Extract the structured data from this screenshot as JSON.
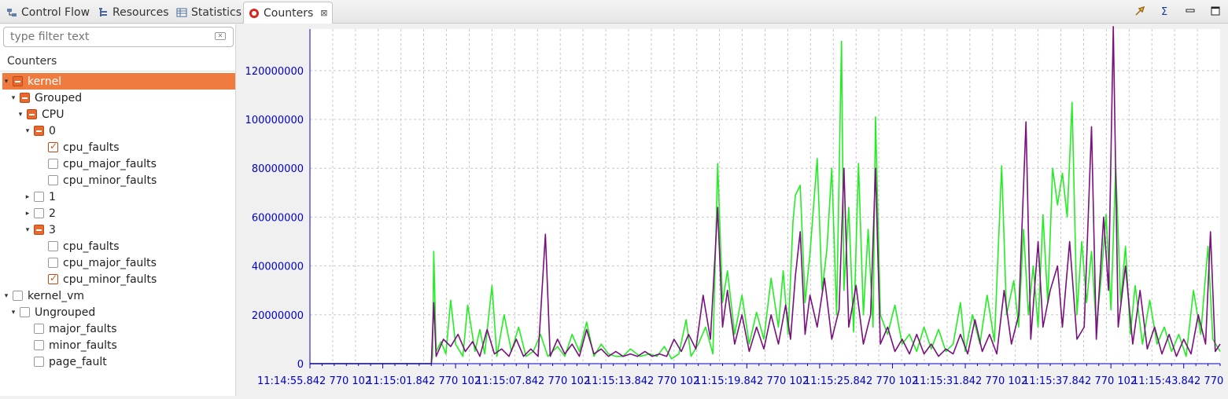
{
  "tabs": [
    {
      "label": "Control Flow",
      "icon": "control-flow-icon",
      "active": false
    },
    {
      "label": "Resources",
      "icon": "resources-icon",
      "active": false
    },
    {
      "label": "Statistics",
      "icon": "statistics-icon",
      "active": false
    },
    {
      "label": "Counters",
      "icon": "counters-icon",
      "active": true,
      "close": "⊠"
    }
  ],
  "toolbar": {
    "icons": [
      "pin-icon",
      "sigma-icon",
      "minimize-icon",
      "maximize-icon"
    ]
  },
  "filter": {
    "placeholder": "type filter text"
  },
  "tree": {
    "header": "Counters",
    "items": [
      {
        "label": "kernel",
        "state": "partial",
        "expanded": true,
        "selected": true
      },
      {
        "label": "Grouped",
        "state": "partial",
        "expanded": true
      },
      {
        "label": "CPU",
        "state": "partial",
        "expanded": true
      },
      {
        "label": "0",
        "state": "partial",
        "expanded": true
      },
      {
        "label": "cpu_faults",
        "state": "checked"
      },
      {
        "label": "cpu_major_faults",
        "state": "unchecked"
      },
      {
        "label": "cpu_minor_faults",
        "state": "unchecked"
      },
      {
        "label": "1",
        "state": "unchecked",
        "expanded": false
      },
      {
        "label": "2",
        "state": "unchecked",
        "expanded": false
      },
      {
        "label": "3",
        "state": "partial",
        "expanded": true
      },
      {
        "label": "cpu_faults",
        "state": "unchecked"
      },
      {
        "label": "cpu_major_faults",
        "state": "unchecked"
      },
      {
        "label": "cpu_minor_faults",
        "state": "checked"
      },
      {
        "label": "kernel_vm",
        "state": "unchecked",
        "expanded": true
      },
      {
        "label": "Ungrouped",
        "state": "unchecked",
        "expanded": true
      },
      {
        "label": "major_faults",
        "state": "unchecked"
      },
      {
        "label": "minor_faults",
        "state": "unchecked"
      },
      {
        "label": "page_fault",
        "state": "unchecked"
      }
    ]
  },
  "colors": {
    "series_green": "#22ee22",
    "series_purple": "#7a0f7e",
    "axis_blue": "#0000cc",
    "selection": "#f07b3f"
  },
  "chart_data": {
    "type": "line",
    "ylim": [
      0,
      137000000
    ],
    "y_ticks": [
      0,
      20000000,
      40000000,
      60000000,
      80000000,
      100000000,
      120000000
    ],
    "y_tick_labels": [
      "0",
      "20000000",
      "40000000",
      "60000000",
      "80000000",
      "100000000",
      "120000000"
    ],
    "x_tick_labels": [
      "11:14:55.842 770 102",
      "11:15:01.842 770 102",
      "11:15:07.842 770 102",
      "11:15:13.842 770 102",
      "11:15:19.842 770 102",
      "11:15:25.842 770 102",
      "11:15:31.842 770 102",
      "11:15:37.842 770 102",
      "11:15:43.842 770"
    ],
    "x_range_s": [
      0,
      37.5
    ],
    "grid": true,
    "series": [
      {
        "color": "#22ee22",
        "points": [
          [
            0,
            0
          ],
          [
            5.0,
            0
          ],
          [
            5.05,
            3000000
          ],
          [
            5.1,
            46000000
          ],
          [
            5.2,
            5000000
          ],
          [
            5.4,
            9000000
          ],
          [
            5.6,
            4000000
          ],
          [
            5.8,
            26000000
          ],
          [
            6.0,
            8000000
          ],
          [
            6.3,
            3000000
          ],
          [
            6.5,
            24000000
          ],
          [
            6.8,
            5000000
          ],
          [
            7.0,
            14000000
          ],
          [
            7.2,
            4000000
          ],
          [
            7.5,
            32000000
          ],
          [
            7.7,
            3000000
          ],
          [
            8.0,
            20000000
          ],
          [
            8.3,
            5000000
          ],
          [
            8.6,
            15000000
          ],
          [
            8.9,
            3000000
          ],
          [
            9.2,
            5000000
          ],
          [
            9.5,
            12000000
          ],
          [
            9.8,
            3000000
          ],
          [
            10.2,
            7000000
          ],
          [
            10.5,
            3000000
          ],
          [
            10.8,
            12000000
          ],
          [
            11.1,
            5000000
          ],
          [
            11.4,
            17000000
          ],
          [
            11.7,
            3000000
          ],
          [
            12.0,
            8000000
          ],
          [
            12.3,
            4000000
          ],
          [
            12.6,
            3000000
          ],
          [
            12.9,
            3000000
          ],
          [
            13.2,
            6000000
          ],
          [
            13.6,
            3000000
          ],
          [
            14.0,
            4000000
          ],
          [
            14.3,
            3000000
          ],
          [
            14.6,
            7000000
          ],
          [
            14.9,
            2000000
          ],
          [
            15.2,
            4000000
          ],
          [
            15.5,
            18000000
          ],
          [
            15.7,
            3000000
          ],
          [
            16.0,
            8000000
          ],
          [
            16.3,
            15000000
          ],
          [
            16.6,
            4000000
          ],
          [
            16.8,
            82000000
          ],
          [
            17.0,
            25000000
          ],
          [
            17.2,
            38000000
          ],
          [
            17.5,
            12000000
          ],
          [
            17.8,
            28000000
          ],
          [
            18.1,
            8000000
          ],
          [
            18.4,
            21000000
          ],
          [
            18.7,
            10000000
          ],
          [
            19.0,
            35000000
          ],
          [
            19.3,
            15000000
          ],
          [
            19.5,
            38000000
          ],
          [
            19.7,
            12000000
          ],
          [
            19.9,
            58000000
          ],
          [
            20.0,
            69000000
          ],
          [
            20.2,
            73000000
          ],
          [
            20.4,
            25000000
          ],
          [
            20.6,
            45000000
          ],
          [
            20.9,
            84000000
          ],
          [
            21.1,
            30000000
          ],
          [
            21.3,
            47000000
          ],
          [
            21.5,
            80000000
          ],
          [
            21.7,
            20000000
          ],
          [
            21.9,
            132000000
          ],
          [
            22.0,
            30000000
          ],
          [
            22.2,
            64000000
          ],
          [
            22.4,
            13000000
          ],
          [
            22.6,
            82000000
          ],
          [
            22.8,
            20000000
          ],
          [
            23.0,
            55000000
          ],
          [
            23.2,
            15000000
          ],
          [
            23.3,
            101000000
          ],
          [
            23.5,
            20000000
          ],
          [
            23.8,
            12000000
          ],
          [
            24.1,
            24000000
          ],
          [
            24.4,
            8000000
          ],
          [
            24.7,
            12000000
          ],
          [
            25.0,
            5000000
          ],
          [
            25.3,
            15000000
          ],
          [
            25.6,
            6000000
          ],
          [
            25.9,
            14000000
          ],
          [
            26.2,
            5000000
          ],
          [
            26.5,
            8000000
          ],
          [
            26.8,
            25000000
          ],
          [
            27.0,
            5000000
          ],
          [
            27.3,
            20000000
          ],
          [
            27.6,
            8000000
          ],
          [
            27.9,
            28000000
          ],
          [
            28.2,
            9000000
          ],
          [
            28.5,
            81000000
          ],
          [
            28.7,
            20000000
          ],
          [
            29.0,
            34000000
          ],
          [
            29.2,
            15000000
          ],
          [
            29.4,
            55000000
          ],
          [
            29.6,
            20000000
          ],
          [
            29.8,
            40000000
          ],
          [
            30.0,
            15000000
          ],
          [
            30.2,
            61000000
          ],
          [
            30.4,
            25000000
          ],
          [
            30.6,
            80000000
          ],
          [
            30.8,
            65000000
          ],
          [
            31.0,
            78000000
          ],
          [
            31.2,
            60000000
          ],
          [
            31.4,
            107000000
          ],
          [
            31.6,
            20000000
          ],
          [
            31.8,
            50000000
          ],
          [
            32.0,
            25000000
          ],
          [
            32.2,
            46000000
          ],
          [
            32.4,
            15000000
          ],
          [
            32.6,
            35000000
          ],
          [
            32.8,
            61000000
          ],
          [
            33.0,
            22000000
          ],
          [
            33.2,
            81000000
          ],
          [
            33.4,
            25000000
          ],
          [
            33.6,
            48000000
          ],
          [
            33.8,
            12000000
          ],
          [
            34.0,
            32000000
          ],
          [
            34.3,
            8000000
          ],
          [
            34.6,
            26000000
          ],
          [
            34.9,
            8000000
          ],
          [
            35.2,
            15000000
          ],
          [
            35.5,
            5000000
          ],
          [
            35.8,
            12000000
          ],
          [
            36.1,
            3000000
          ],
          [
            36.4,
            30000000
          ],
          [
            36.7,
            12000000
          ],
          [
            37.0,
            48000000
          ],
          [
            37.2,
            10000000
          ],
          [
            37.5,
            5000000
          ]
        ]
      },
      {
        "color": "#7a0f7e",
        "points": [
          [
            0,
            0
          ],
          [
            5.0,
            0
          ],
          [
            5.1,
            25000000
          ],
          [
            5.2,
            3000000
          ],
          [
            5.5,
            10000000
          ],
          [
            5.8,
            7000000
          ],
          [
            6.1,
            12000000
          ],
          [
            6.4,
            5000000
          ],
          [
            6.7,
            9000000
          ],
          [
            7.0,
            3000000
          ],
          [
            7.3,
            14000000
          ],
          [
            7.6,
            4000000
          ],
          [
            7.9,
            6000000
          ],
          [
            8.2,
            3000000
          ],
          [
            8.5,
            10000000
          ],
          [
            8.8,
            3000000
          ],
          [
            9.1,
            6000000
          ],
          [
            9.4,
            3000000
          ],
          [
            9.7,
            53000000
          ],
          [
            9.9,
            3000000
          ],
          [
            10.2,
            10000000
          ],
          [
            10.5,
            4000000
          ],
          [
            10.8,
            8000000
          ],
          [
            11.1,
            3000000
          ],
          [
            11.4,
            14000000
          ],
          [
            11.7,
            4000000
          ],
          [
            12.0,
            6000000
          ],
          [
            12.3,
            3000000
          ],
          [
            12.6,
            5000000
          ],
          [
            12.9,
            3000000
          ],
          [
            13.2,
            4000000
          ],
          [
            13.5,
            3000000
          ],
          [
            13.8,
            5000000
          ],
          [
            14.1,
            3000000
          ],
          [
            14.4,
            4000000
          ],
          [
            14.7,
            3000000
          ],
          [
            15.0,
            10000000
          ],
          [
            15.3,
            5000000
          ],
          [
            15.6,
            12000000
          ],
          [
            15.9,
            6000000
          ],
          [
            16.2,
            28000000
          ],
          [
            16.5,
            10000000
          ],
          [
            16.8,
            64000000
          ],
          [
            17.0,
            15000000
          ],
          [
            17.2,
            30000000
          ],
          [
            17.5,
            8000000
          ],
          [
            17.8,
            20000000
          ],
          [
            18.1,
            5000000
          ],
          [
            18.4,
            15000000
          ],
          [
            18.7,
            6000000
          ],
          [
            19.0,
            20000000
          ],
          [
            19.3,
            8000000
          ],
          [
            19.6,
            24000000
          ],
          [
            19.8,
            10000000
          ],
          [
            20.0,
            36000000
          ],
          [
            20.2,
            54000000
          ],
          [
            20.4,
            12000000
          ],
          [
            20.6,
            28000000
          ],
          [
            20.9,
            15000000
          ],
          [
            21.2,
            35000000
          ],
          [
            21.5,
            10000000
          ],
          [
            21.8,
            22000000
          ],
          [
            22.0,
            80000000
          ],
          [
            22.2,
            15000000
          ],
          [
            22.5,
            32000000
          ],
          [
            22.8,
            8000000
          ],
          [
            23.1,
            20000000
          ],
          [
            23.3,
            80000000
          ],
          [
            23.5,
            8000000
          ],
          [
            23.8,
            15000000
          ],
          [
            24.1,
            5000000
          ],
          [
            24.4,
            10000000
          ],
          [
            24.7,
            4000000
          ],
          [
            25.0,
            12000000
          ],
          [
            25.3,
            4000000
          ],
          [
            25.6,
            8000000
          ],
          [
            25.9,
            3000000
          ],
          [
            26.2,
            6000000
          ],
          [
            26.5,
            4000000
          ],
          [
            26.8,
            12000000
          ],
          [
            27.1,
            4000000
          ],
          [
            27.4,
            18000000
          ],
          [
            27.7,
            5000000
          ],
          [
            28.0,
            12000000
          ],
          [
            28.3,
            4000000
          ],
          [
            28.6,
            30000000
          ],
          [
            28.9,
            8000000
          ],
          [
            29.2,
            20000000
          ],
          [
            29.5,
            99000000
          ],
          [
            29.7,
            10000000
          ],
          [
            30.0,
            50000000
          ],
          [
            30.2,
            15000000
          ],
          [
            30.5,
            30000000
          ],
          [
            30.8,
            40000000
          ],
          [
            31.0,
            15000000
          ],
          [
            31.3,
            50000000
          ],
          [
            31.6,
            10000000
          ],
          [
            31.9,
            15000000
          ],
          [
            32.2,
            97000000
          ],
          [
            32.4,
            10000000
          ],
          [
            32.7,
            60000000
          ],
          [
            32.9,
            30000000
          ],
          [
            33.1,
            138000000
          ],
          [
            33.3,
            15000000
          ],
          [
            33.6,
            40000000
          ],
          [
            33.9,
            8000000
          ],
          [
            34.2,
            30000000
          ],
          [
            34.5,
            6000000
          ],
          [
            34.8,
            15000000
          ],
          [
            35.1,
            4000000
          ],
          [
            35.4,
            12000000
          ],
          [
            35.7,
            3000000
          ],
          [
            36.0,
            10000000
          ],
          [
            36.3,
            4000000
          ],
          [
            36.6,
            20000000
          ],
          [
            36.9,
            8000000
          ],
          [
            37.1,
            54000000
          ],
          [
            37.3,
            5000000
          ],
          [
            37.5,
            8000000
          ]
        ]
      }
    ]
  }
}
